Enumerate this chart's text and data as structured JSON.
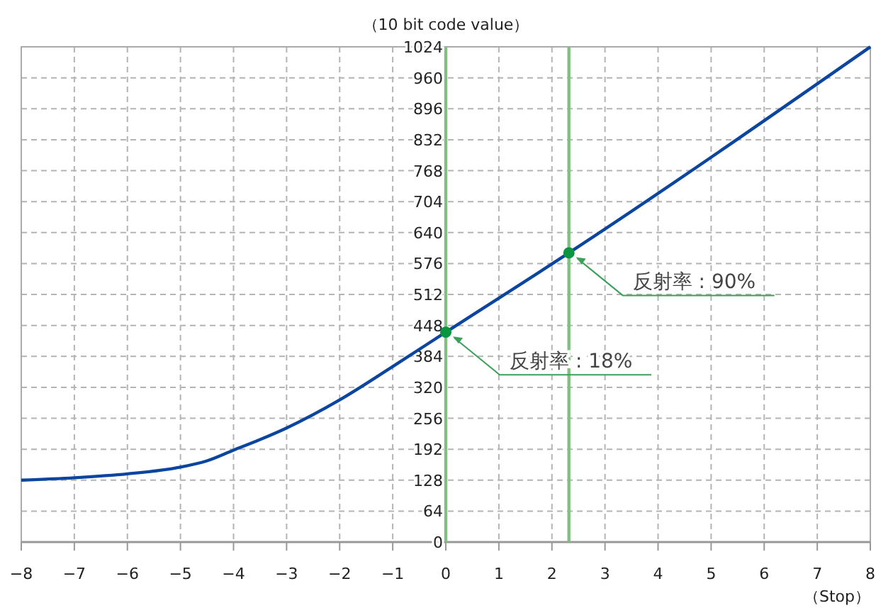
{
  "chart_data": {
    "type": "line",
    "xlabel": "（Stop）",
    "ylabel": "（10 bit code value）",
    "xlim": [
      -8,
      8
    ],
    "xticks": [
      -8,
      -7,
      -6,
      -5,
      -4,
      -3,
      -2,
      -1,
      0,
      1,
      2,
      3,
      4,
      5,
      6,
      7,
      8
    ],
    "ylim": [
      0,
      1024
    ],
    "yticks": [
      0,
      64,
      128,
      192,
      256,
      320,
      384,
      448,
      512,
      576,
      640,
      704,
      768,
      832,
      896,
      960,
      1024
    ],
    "grid": true,
    "line_style": "solid",
    "marker": "none",
    "series": [
      {
        "color": "#0a46a0",
        "x": [
          -8,
          -7,
          -6,
          -5,
          -4.5,
          -4,
          -3.5,
          -3,
          -2,
          -1,
          0,
          2.32,
          8
        ],
        "values": [
          128,
          133,
          141,
          155,
          168,
          190,
          212,
          236,
          294,
          363,
          434,
          598,
          1024
        ]
      },
      {
        "type": "scatter",
        "color": "#0a9640",
        "marker": "circle",
        "x": [
          0,
          2.32
        ],
        "values": [
          434,
          598
        ]
      }
    ],
    "ref_lines": [
      {
        "axis": "x",
        "value": 0,
        "color": "#80c080"
      },
      {
        "axis": "x",
        "value": 2.32,
        "color": "#80c080"
      }
    ],
    "annotations": [
      {
        "text": "反射率 : 18%",
        "x": 0,
        "y": 434
      },
      {
        "text": "反射率 : 90%",
        "x": 2.32,
        "y": 598
      }
    ]
  }
}
